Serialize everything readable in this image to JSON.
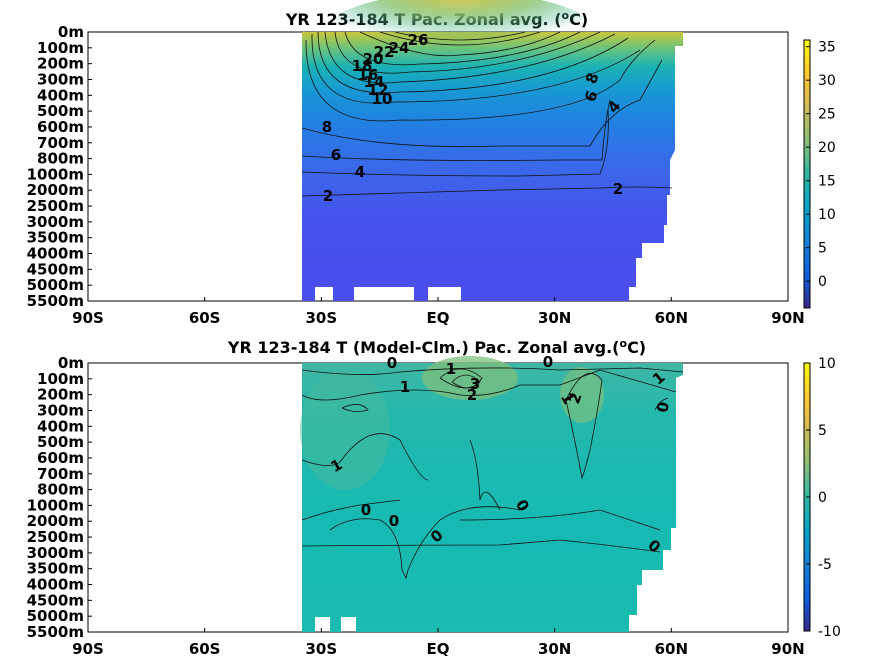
{
  "chart_data": [
    {
      "type": "heatmap",
      "title_main": "YR 123-184 T Pac. Zonal avg. (",
      "title_sup": "o",
      "title_end": "C)",
      "x_ticks": [
        "90S",
        "60S",
        "30S",
        "EQ",
        "30N",
        "60N",
        "90N"
      ],
      "x_values": [
        -90,
        -60,
        -30,
        0,
        30,
        60,
        90
      ],
      "y_ticks": [
        "0m",
        "100m",
        "200m",
        "300m",
        "400m",
        "500m",
        "600m",
        "700m",
        "800m",
        "1000m",
        "2000m",
        "2500m",
        "3000m",
        "3500m",
        "4000m",
        "4500m",
        "5000m",
        "5500m"
      ],
      "colorbar": {
        "ticks": [
          "35",
          "30",
          "25",
          "20",
          "15",
          "10",
          "5",
          "0"
        ],
        "tick_values": [
          35,
          30,
          25,
          20,
          15,
          10,
          5,
          0
        ],
        "min": -4,
        "max": 36
      },
      "contour_labels": [
        "26",
        "24",
        "22",
        "20",
        "18",
        "16",
        "14",
        "12",
        "10",
        "8",
        "6",
        "4",
        "2",
        "8",
        "6",
        "4",
        "2"
      ],
      "contour_levels": [
        26,
        24,
        22,
        20,
        18,
        16,
        14,
        12,
        10,
        8,
        6,
        4,
        2,
        8,
        6,
        4,
        2
      ]
    },
    {
      "type": "heatmap",
      "title_main": "YR 123-184 T (Model-Clm.) Pac. Zonal avg.(",
      "title_sup": "o",
      "title_end": "C)",
      "x_ticks": [
        "90S",
        "60S",
        "30S",
        "EQ",
        "30N",
        "60N",
        "90N"
      ],
      "x_values": [
        -90,
        -60,
        -30,
        0,
        30,
        60,
        90
      ],
      "y_ticks": [
        "0m",
        "100m",
        "200m",
        "300m",
        "400m",
        "500m",
        "600m",
        "700m",
        "800m",
        "1000m",
        "2000m",
        "2500m",
        "3000m",
        "3500m",
        "4000m",
        "4500m",
        "5000m",
        "5500m"
      ],
      "colorbar": {
        "ticks": [
          "10",
          "5",
          "0",
          "-5",
          "-10"
        ],
        "tick_values": [
          10,
          5,
          0,
          -5,
          -10
        ],
        "min": -10,
        "max": 10
      },
      "contour_labels": [
        "0",
        "1",
        "3",
        "2",
        "0",
        "1",
        "2",
        "1",
        "0",
        "1",
        "1",
        "0",
        "0",
        "0",
        "0",
        "0"
      ],
      "contour_levels": [
        0,
        1,
        3,
        2,
        0,
        1,
        2,
        1,
        0,
        1,
        1,
        0,
        0,
        0,
        0,
        0
      ]
    }
  ]
}
